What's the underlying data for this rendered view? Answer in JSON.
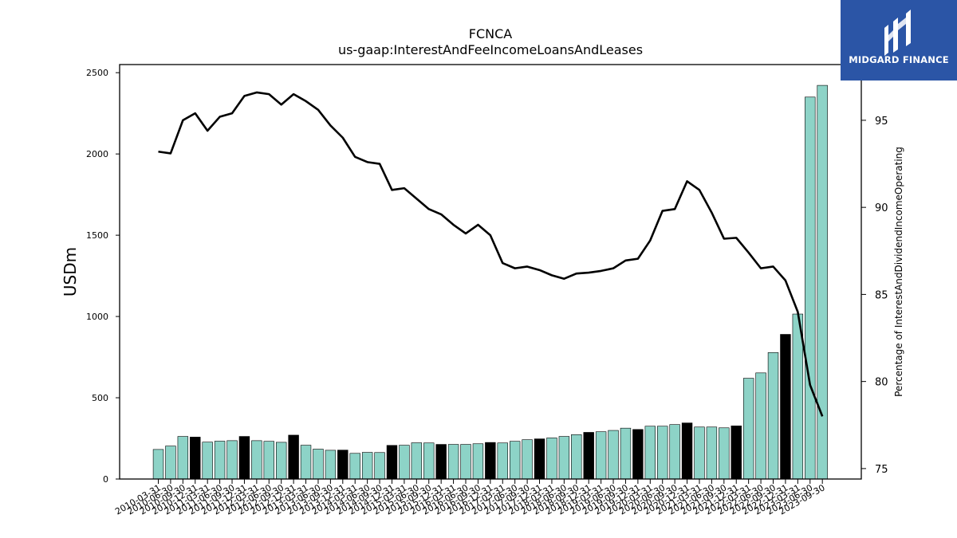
{
  "chart_data": {
    "type": "bar",
    "title": "FCNCA",
    "subtitle": "us-gaap:InterestAndFeeIncomeLoansAndLeases",
    "ylabel": "USDm",
    "y2label": "Percentage of InterestAndDividendIncomeOperating",
    "ylim": [
      0,
      2550
    ],
    "y2lim": [
      74.4,
      98.2
    ],
    "yticks": [
      0,
      500,
      1000,
      1500,
      2000,
      2500
    ],
    "y2ticks": [
      75,
      80,
      85,
      90,
      95
    ],
    "categories": [
      "2010-03-31",
      "2010-06-30",
      "2010-09-30",
      "2010-12-31",
      "2011-03-31",
      "2011-06-30",
      "2011-09-30",
      "2011-12-31",
      "2012-03-31",
      "2012-06-30",
      "2012-09-30",
      "2012-12-31",
      "2013-03-31",
      "2013-06-30",
      "2013-09-30",
      "2013-12-31",
      "2014-03-31",
      "2014-06-30",
      "2014-09-30",
      "2014-12-31",
      "2015-03-31",
      "2015-06-30",
      "2015-09-30",
      "2015-12-31",
      "2016-03-31",
      "2016-06-30",
      "2016-09-30",
      "2016-12-31",
      "2017-03-31",
      "2017-06-30",
      "2017-09-30",
      "2017-12-31",
      "2018-03-31",
      "2018-06-30",
      "2018-09-30",
      "2018-12-31",
      "2019-03-31",
      "2019-06-30",
      "2019-09-30",
      "2019-12-31",
      "2020-03-31",
      "2020-06-30",
      "2020-09-30",
      "2020-12-31",
      "2021-03-31",
      "2021-06-30",
      "2021-09-30",
      "2021-12-31",
      "2022-03-31",
      "2022-06-30",
      "2022-09-30",
      "2022-12-31",
      "2023-03-31",
      "2023-06-30",
      "2023-09-30"
    ],
    "series": [
      {
        "type": "bar",
        "values": [
          182,
          203,
          262,
          258,
          227,
          233,
          236,
          262,
          236,
          232,
          226,
          270,
          208,
          184,
          177,
          178,
          158,
          164,
          163,
          207,
          208,
          223,
          222,
          213,
          213,
          213,
          217,
          225,
          222,
          232,
          242,
          247,
          253,
          262,
          273,
          287,
          291,
          299,
          313,
          305,
          325,
          325,
          335,
          345,
          320,
          320,
          315,
          327,
          620,
          653,
          778,
          890,
          1015,
          2350,
          2422
        ],
        "highlight": [
          false,
          false,
          false,
          true,
          false,
          false,
          false,
          true,
          false,
          false,
          false,
          true,
          false,
          false,
          false,
          true,
          false,
          false,
          false,
          true,
          false,
          false,
          false,
          true,
          false,
          false,
          false,
          true,
          false,
          false,
          false,
          true,
          false,
          false,
          false,
          true,
          false,
          false,
          false,
          true,
          false,
          false,
          false,
          true,
          false,
          false,
          false,
          true,
          false,
          false,
          false,
          true,
          false,
          false,
          false
        ]
      },
      {
        "type": "line",
        "axis": "right",
        "values": [
          93.2,
          93.1,
          95.0,
          95.4,
          94.4,
          95.2,
          95.4,
          96.4,
          96.6,
          96.5,
          95.9,
          96.5,
          96.1,
          95.6,
          94.7,
          94.0,
          92.9,
          92.6,
          92.5,
          91.0,
          91.1,
          90.5,
          89.9,
          89.6,
          89.0,
          88.5,
          89.0,
          88.4,
          86.8,
          86.5,
          86.6,
          86.4,
          86.1,
          85.9,
          86.2,
          86.25,
          86.35,
          86.5,
          86.95,
          87.05,
          88.1,
          89.8,
          89.9,
          91.5,
          91.0,
          89.7,
          88.2,
          88.25,
          87.4,
          86.5,
          86.6,
          85.8,
          84.0,
          79.8,
          78.0
        ]
      }
    ],
    "colors": {
      "bar": "#8dd3c7",
      "bar_highlight": "#000000",
      "line": "#000000"
    },
    "legend": "none",
    "grid": false
  },
  "logo": {
    "text": "MIDGARD FINANCE",
    "background": "#2b55a6"
  }
}
